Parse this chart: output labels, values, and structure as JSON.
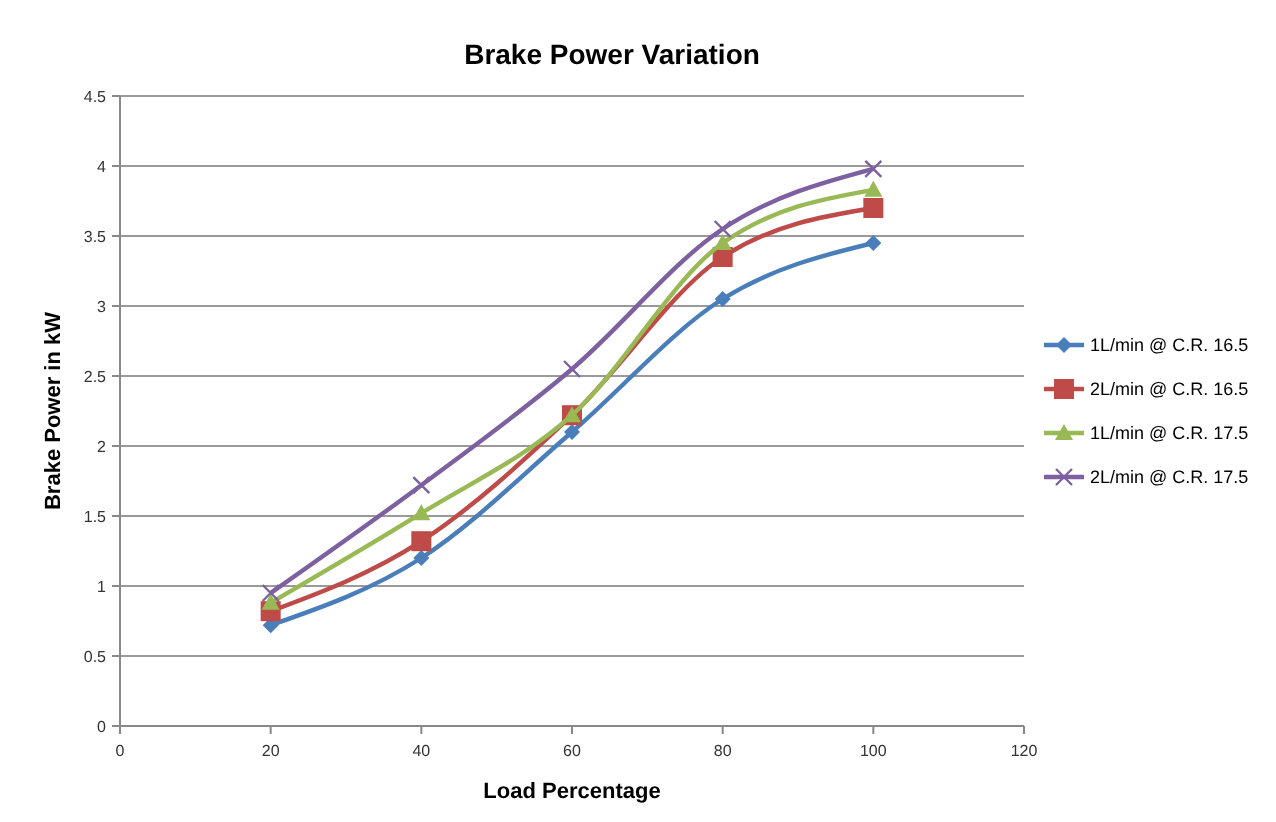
{
  "chart_data": {
    "type": "line",
    "title": "Brake Power Variation",
    "xlabel": "Load Percentage",
    "ylabel": "Brake Power in kW",
    "x": [
      20,
      40,
      60,
      80,
      100
    ],
    "xlim": [
      0,
      120
    ],
    "xticks": [
      0,
      20,
      40,
      60,
      80,
      100,
      120
    ],
    "ylim": [
      0,
      4.5
    ],
    "yticks": [
      0,
      0.5,
      1,
      1.5,
      2,
      2.5,
      3,
      3.5,
      4,
      4.5
    ],
    "grid": "y",
    "legend": "right",
    "series": [
      {
        "name": "1L/min @ C.R. 16.5",
        "color": "#4a7ebb",
        "marker": "diamond",
        "values": [
          0.72,
          1.2,
          2.1,
          3.05,
          3.45
        ]
      },
      {
        "name": "2L/min @ C.R. 16.5",
        "color": "#be4b48",
        "marker": "square",
        "values": [
          0.82,
          1.32,
          2.22,
          3.35,
          3.7
        ]
      },
      {
        "name": "1L/min @ C.R. 17.5",
        "color": "#98b954",
        "marker": "triangle",
        "values": [
          0.88,
          1.52,
          2.22,
          3.45,
          3.83
        ]
      },
      {
        "name": "2L/min @ C.R. 17.5",
        "color": "#7d60a0",
        "marker": "cross",
        "values": [
          0.95,
          1.72,
          2.55,
          3.55,
          3.98
        ]
      }
    ]
  }
}
